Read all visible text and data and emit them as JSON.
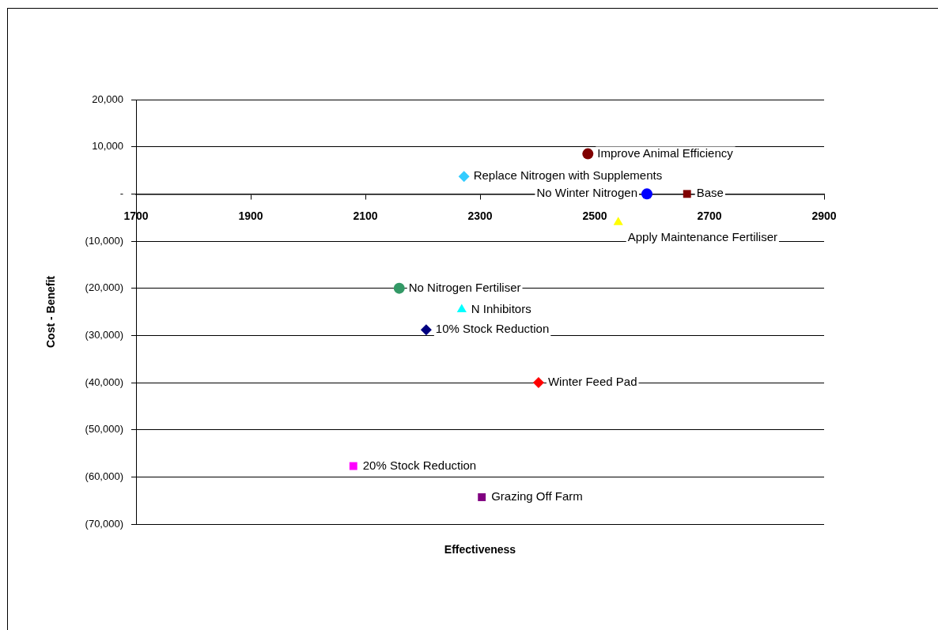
{
  "chart_data": {
    "type": "scatter",
    "xlabel": "Effectiveness",
    "ylabel": "Cost - Benefit",
    "xlim": [
      1700,
      2900
    ],
    "xticks": [
      1700,
      1900,
      2100,
      2300,
      2500,
      2700,
      2900
    ],
    "ylim": [
      -70000,
      20000
    ],
    "yticks": [
      {
        "value": -70000,
        "label": "(70,000)"
      },
      {
        "value": -60000,
        "label": "(60,000)"
      },
      {
        "value": -50000,
        "label": "(50,000)"
      },
      {
        "value": -40000,
        "label": "(40,000)"
      },
      {
        "value": -30000,
        "label": "(30,000)"
      },
      {
        "value": -20000,
        "label": "(20,000)"
      },
      {
        "value": -10000,
        "label": "(10,000)"
      },
      {
        "value": 0,
        "label": "-"
      },
      {
        "value": 10000,
        "label": "10,000"
      },
      {
        "value": 20000,
        "label": "20,000"
      }
    ],
    "grid": "y",
    "legend": false,
    "series": [
      {
        "name": "Improve Animal Efficiency",
        "color": "#800000",
        "marker": "circle",
        "x": [
          2488
        ],
        "values": [
          8500
        ]
      },
      {
        "name": "Replace Nitrogen with Supplements",
        "color": "#33ccff",
        "marker": "diamond",
        "x": [
          2272
        ],
        "values": [
          3700
        ]
      },
      {
        "name": "No Winter Nitrogen",
        "color": "#0000ff",
        "marker": "circle",
        "x": [
          2591
        ],
        "values": [
          0
        ]
      },
      {
        "name": "Base",
        "color": "#800000",
        "marker": "square",
        "x": [
          2661
        ],
        "values": [
          0
        ]
      },
      {
        "name": "Apply Maintenance Fertiliser",
        "color": "#ffff00",
        "marker": "triangle",
        "x": [
          2541
        ],
        "values": [
          -6000
        ]
      },
      {
        "name": "No Nitrogen Fertiliser",
        "color": "#339966",
        "marker": "circle",
        "x": [
          2159
        ],
        "values": [
          -20000
        ]
      },
      {
        "name": "N Inhibitors",
        "color": "#00ffff",
        "marker": "triangle",
        "x": [
          2268
        ],
        "values": [
          -24500
        ]
      },
      {
        "name": "10% Stock Reduction",
        "color": "#000080",
        "marker": "diamond",
        "x": [
          2206
        ],
        "values": [
          -28800
        ]
      },
      {
        "name": "Winter Feed Pad",
        "color": "#ff0000",
        "marker": "diamond",
        "x": [
          2402
        ],
        "values": [
          -40000
        ]
      },
      {
        "name": "20% Stock Reduction",
        "color": "#ff00ff",
        "marker": "square",
        "x": [
          2079
        ],
        "values": [
          -57700
        ]
      },
      {
        "name": "Grazing Off Farm",
        "color": "#800080",
        "marker": "square",
        "x": [
          2303
        ],
        "values": [
          -64300
        ]
      }
    ]
  }
}
